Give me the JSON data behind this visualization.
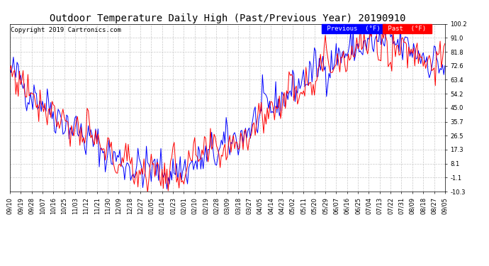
{
  "title": "Outdoor Temperature Daily High (Past/Previous Year) 20190910",
  "copyright": "Copyright 2019 Cartronics.com",
  "ylabel_right_ticks": [
    100.2,
    91.0,
    81.8,
    72.6,
    63.4,
    54.2,
    45.0,
    35.7,
    26.5,
    17.3,
    8.1,
    -1.1,
    -10.3
  ],
  "ymin": -10.3,
  "ymax": 100.2,
  "legend_labels": [
    "Previous  (°F)",
    "Past  (°F)"
  ],
  "legend_colors": [
    "blue",
    "red"
  ],
  "line_color_prev": "blue",
  "line_color_past": "red",
  "background_color": "#ffffff",
  "plot_bg_color": "#ffffff",
  "grid_color": "#c8c8c8",
  "title_fontsize": 10,
  "copyright_fontsize": 6.5,
  "tick_fontsize": 6,
  "x_tick_labels": [
    "09/10",
    "09/19",
    "09/28",
    "10/07",
    "10/16",
    "10/25",
    "11/03",
    "11/12",
    "11/21",
    "11/30",
    "12/09",
    "12/18",
    "12/27",
    "01/05",
    "01/14",
    "01/23",
    "02/01",
    "02/10",
    "02/19",
    "02/28",
    "03/09",
    "03/18",
    "03/27",
    "04/05",
    "04/14",
    "04/23",
    "05/02",
    "05/11",
    "05/20",
    "05/29",
    "06/07",
    "06/16",
    "06/25",
    "07/04",
    "07/13",
    "07/22",
    "07/31",
    "08/09",
    "08/18",
    "08/27",
    "09/05"
  ]
}
